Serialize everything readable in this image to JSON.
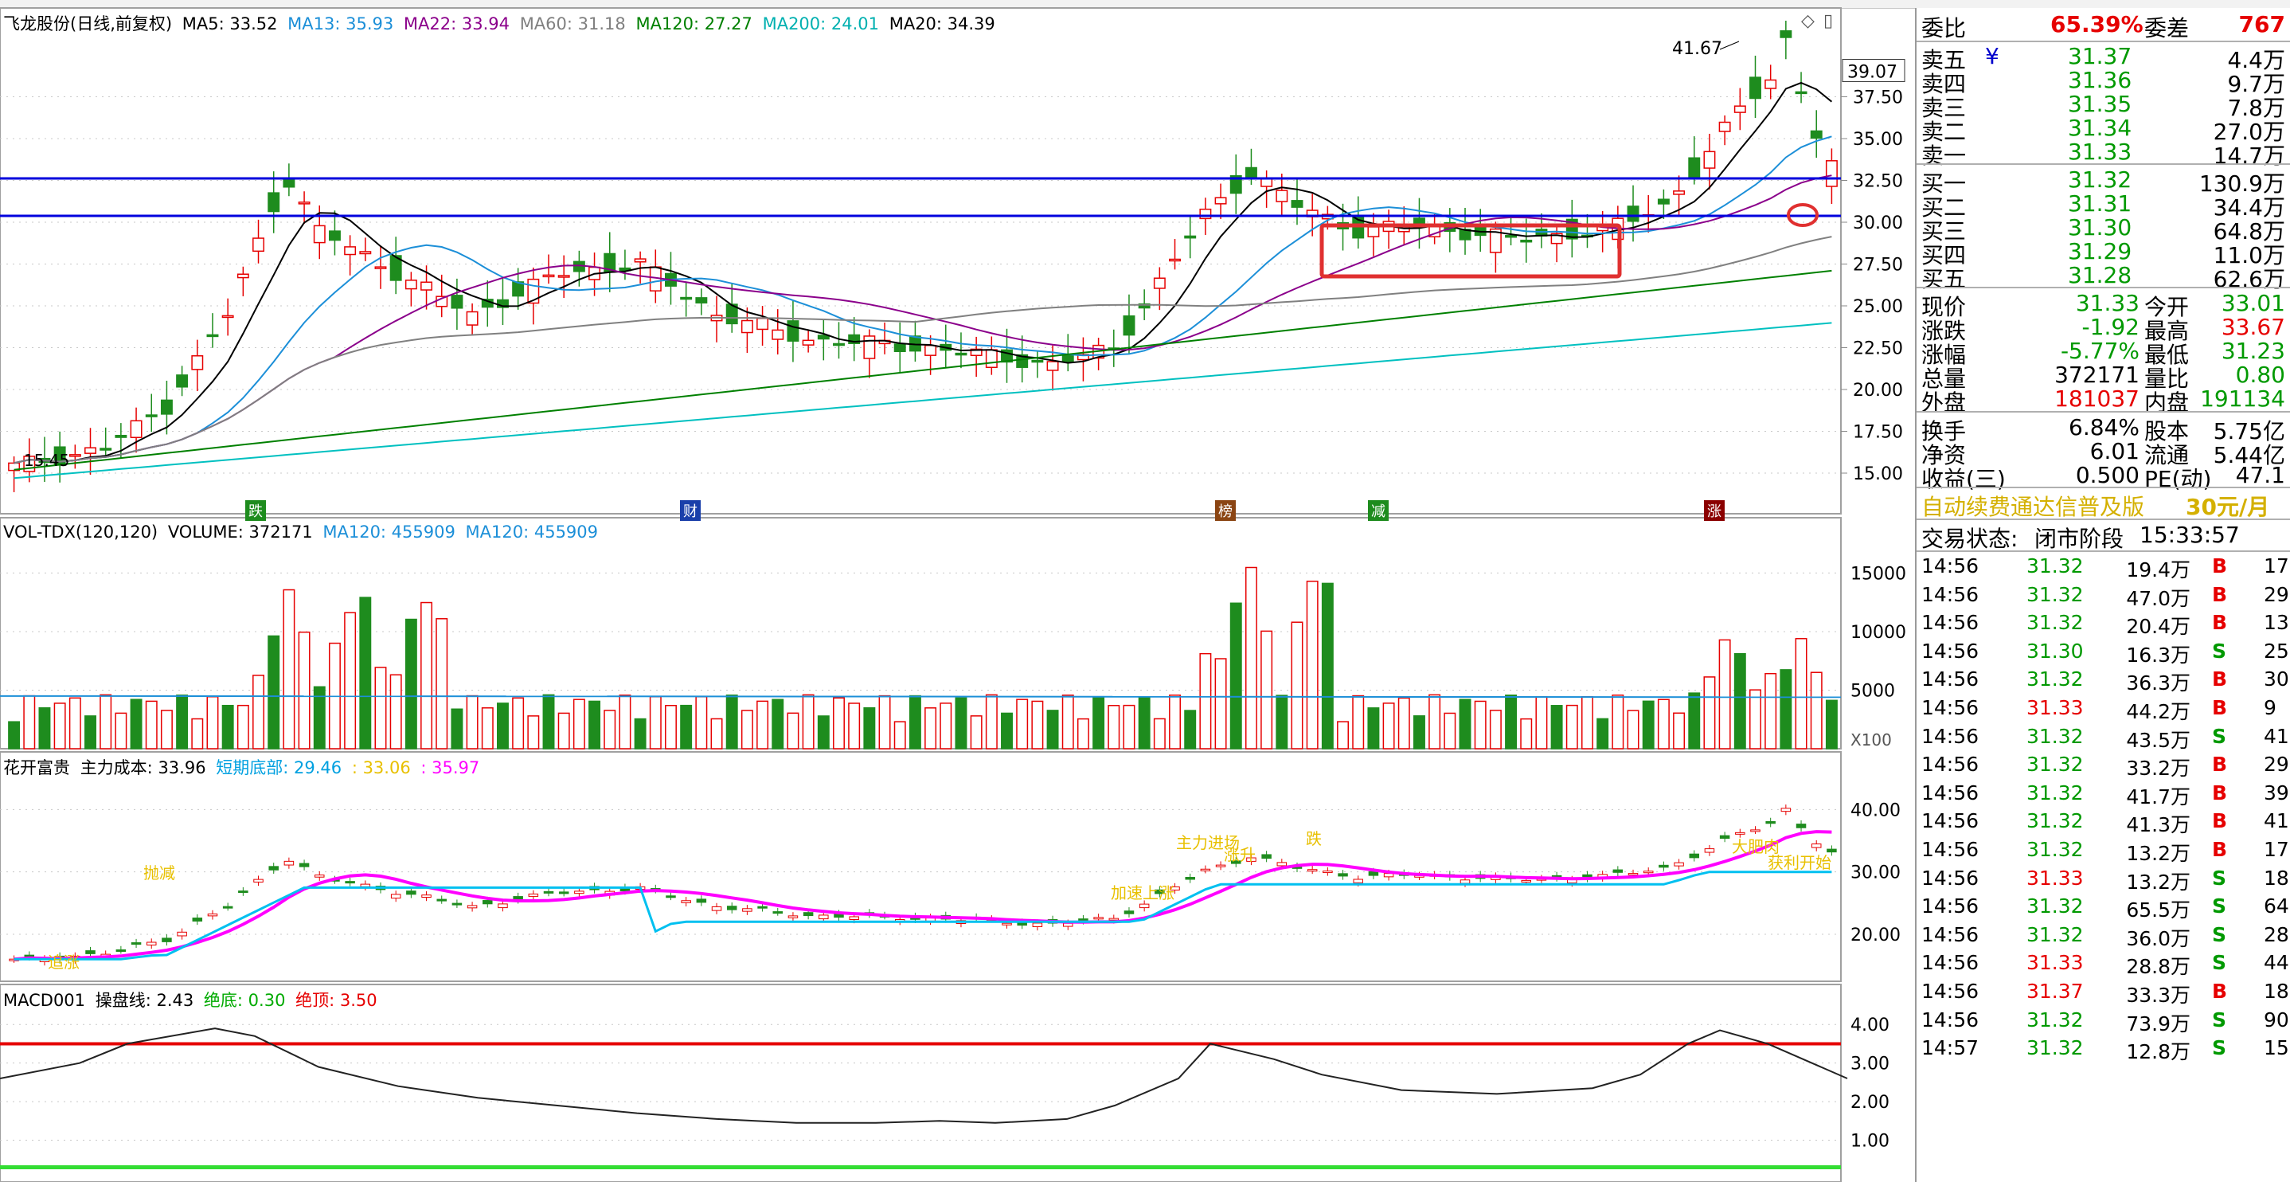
{
  "colors": {
    "up": "#e60000",
    "down": "#1e8c1e",
    "ma5": "#000000",
    "ma13": "#1c8fd8",
    "ma22": "#8b008b",
    "ma60": "#808080",
    "ma120": "#008000",
    "ma200": "#00c0c0",
    "hline": "#0000dd",
    "magenta": "#ff00ff",
    "cyan": "#00c0f0",
    "yellow": "#e8c000"
  },
  "header": {
    "stock": "飞龙股份(日线,前复权)",
    "ma5": "MA5: 33.52",
    "ma13": "MA13: 35.93",
    "ma22": "MA22: 33.94",
    "ma60": "MA60: 31.18",
    "ma120": "MA120: 27.27",
    "ma200": "MA200: 24.01",
    "ma20": "MA20: 34.39"
  },
  "main_axis": {
    "ticks": [
      "37.50",
      "35.00",
      "32.50",
      "30.00",
      "27.50",
      "25.00",
      "22.50",
      "20.00",
      "17.50",
      "15.00"
    ],
    "current_box": "39.07"
  },
  "main_labels": {
    "high": "41.67",
    "low": "15.45"
  },
  "events": [
    {
      "label": "跌",
      "color": "#1e8c1e"
    },
    {
      "label": "财",
      "color": "#1a3faa"
    },
    {
      "label": "榜",
      "color": "#8b4513"
    },
    {
      "label": "减",
      "color": "#1e8c1e"
    },
    {
      "label": "涨",
      "color": "#8b0000"
    }
  ],
  "vol_header": {
    "name": "VOL-TDX(120,120)",
    "volume": "VOLUME: 372171",
    "ma1": "MA120: 455909",
    "ma2": "MA120: 455909"
  },
  "vol_axis": {
    "ticks": [
      "15000",
      "10000",
      "5000"
    ],
    "unit": "X100"
  },
  "hk_header": {
    "name": "花开富贵",
    "cost": "主力成本: 33.96",
    "short": "短期底部: 29.46",
    "v1": ": 33.06",
    "v2": ": 35.97"
  },
  "hk_axis": {
    "ticks": [
      "40.00",
      "30.00",
      "20.00"
    ]
  },
  "hk_labels": [
    "追涨",
    "抛减",
    "加速上涨",
    "主力进场",
    "涨升",
    "跌",
    "大肥肉",
    "获利开始"
  ],
  "macd_header": {
    "name": "MACD001",
    "line": "操盘线: 2.43",
    "bottom": "绝底: 0.30",
    "top": "绝顶: 3.50"
  },
  "macd_axis": {
    "ticks": [
      "4.00",
      "3.00",
      "2.00",
      "1.00"
    ]
  },
  "quote": {
    "weibi_label": "委比",
    "weibi": "65.39%",
    "weicha_label": "委差",
    "weicha": "767",
    "asks": [
      {
        "label": "卖五",
        "price": "31.37",
        "vol": "4.4万"
      },
      {
        "label": "卖四",
        "price": "31.36",
        "vol": "9.7万"
      },
      {
        "label": "卖三",
        "price": "31.35",
        "vol": "7.8万"
      },
      {
        "label": "卖二",
        "price": "31.34",
        "vol": "27.0万"
      },
      {
        "label": "卖一",
        "price": "31.33",
        "vol": "14.7万"
      }
    ],
    "yen": "¥",
    "bids": [
      {
        "label": "买一",
        "price": "31.32",
        "vol": "130.9万"
      },
      {
        "label": "买二",
        "price": "31.31",
        "vol": "34.4万"
      },
      {
        "label": "买三",
        "price": "31.30",
        "vol": "64.8万"
      },
      {
        "label": "买四",
        "price": "31.29",
        "vol": "11.0万"
      },
      {
        "label": "买五",
        "price": "31.28",
        "vol": "62.6万"
      }
    ],
    "stats": [
      {
        "l1": "现价",
        "v1": "31.33",
        "c1": "#009900",
        "l2": "今开",
        "v2": "33.01",
        "c2": "#009900"
      },
      {
        "l1": "涨跌",
        "v1": "-1.92",
        "c1": "#009900",
        "l2": "最高",
        "v2": "33.67",
        "c2": "#e60000"
      },
      {
        "l1": "涨幅",
        "v1": "-5.77%",
        "c1": "#009900",
        "l2": "最低",
        "v2": "31.23",
        "c2": "#009900"
      },
      {
        "l1": "总量",
        "v1": "372171",
        "c1": "#000000",
        "l2": "量比",
        "v2": "0.80",
        "c2": "#009900"
      },
      {
        "l1": "外盘",
        "v1": "181037",
        "c1": "#e60000",
        "l2": "内盘",
        "v2": "191134",
        "c2": "#009900"
      }
    ],
    "stats2": [
      {
        "l1": "换手",
        "v1": "6.84%",
        "l2": "股本",
        "v2": "5.75亿"
      },
      {
        "l1": "净资",
        "v1": "6.01",
        "l2": "流通",
        "v2": "5.44亿"
      },
      {
        "l1": "收益(三)",
        "v1": "0.500",
        "l2": "PE(动)",
        "v2": "47.1"
      }
    ],
    "ad": "自动续费通达信普及版",
    "ad_price": "30元/月",
    "status_label": "交易状态:",
    "status": "闭市阶段",
    "status_time": "15:33:57"
  },
  "ticks": [
    {
      "t": "14:56",
      "p": "31.32",
      "v": "19.4万",
      "s": "B",
      "n": "17"
    },
    {
      "t": "14:56",
      "p": "31.32",
      "v": "47.0万",
      "s": "B",
      "n": "29"
    },
    {
      "t": "14:56",
      "p": "31.32",
      "v": "20.4万",
      "s": "B",
      "n": "13"
    },
    {
      "t": "14:56",
      "p": "31.30",
      "v": "16.3万",
      "s": "S",
      "n": "25"
    },
    {
      "t": "14:56",
      "p": "31.32",
      "v": "36.3万",
      "s": "B",
      "n": "30"
    },
    {
      "t": "14:56",
      "p": "31.33",
      "v": "44.2万",
      "s": "B",
      "n": "9"
    },
    {
      "t": "14:56",
      "p": "31.32",
      "v": "43.5万",
      "s": "S",
      "n": "41"
    },
    {
      "t": "14:56",
      "p": "31.32",
      "v": "33.2万",
      "s": "B",
      "n": "29"
    },
    {
      "t": "14:56",
      "p": "31.32",
      "v": "41.7万",
      "s": "B",
      "n": "39"
    },
    {
      "t": "14:56",
      "p": "31.32",
      "v": "41.3万",
      "s": "B",
      "n": "41"
    },
    {
      "t": "14:56",
      "p": "31.32",
      "v": "13.2万",
      "s": "B",
      "n": "17"
    },
    {
      "t": "14:56",
      "p": "31.33",
      "v": "13.2万",
      "s": "S",
      "n": "18"
    },
    {
      "t": "14:56",
      "p": "31.32",
      "v": "65.5万",
      "s": "S",
      "n": "64"
    },
    {
      "t": "14:56",
      "p": "31.32",
      "v": "36.0万",
      "s": "S",
      "n": "28"
    },
    {
      "t": "14:56",
      "p": "31.33",
      "v": "28.8万",
      "s": "S",
      "n": "44"
    },
    {
      "t": "14:56",
      "p": "31.37",
      "v": "33.3万",
      "s": "B",
      "n": "18"
    },
    {
      "t": "14:56",
      "p": "31.32",
      "v": "73.9万",
      "s": "S",
      "n": "90"
    },
    {
      "t": "14:57",
      "p": "31.32",
      "v": "12.8万",
      "s": "S",
      "n": "15"
    }
  ]
}
